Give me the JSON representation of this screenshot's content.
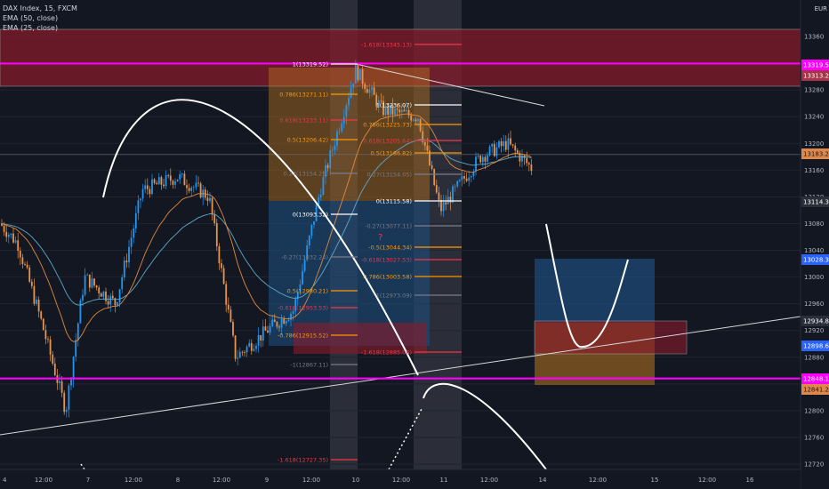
{
  "legend": {
    "symbol": "DAX Index, 15, FXCM",
    "ema1": "EMA (50, close)",
    "ema2": "EMA (25, close)"
  },
  "colors": {
    "background": "#131722",
    "up": "#2196f3",
    "down": "#e8944a",
    "ema50": "#5ea9c9",
    "ema25": "#e08a3c",
    "magenta": "#ff00ff",
    "red_zone": "#8b1a2b",
    "blue_zone": "#1e4d7b",
    "orange_zone": "#b8741f",
    "gray_band": "#5a5560",
    "white": "#ffffff"
  },
  "chart_data": {
    "type": "candlestick",
    "symbol": "DAX Index",
    "interval": "15",
    "y_axis": {
      "ticks": [
        13360,
        13320,
        13280,
        13240,
        13200,
        13160,
        13120,
        13080,
        13040,
        13000,
        12960,
        12920,
        12880,
        12840,
        12800,
        12760,
        12720
      ],
      "top_label": "EUR"
    },
    "x_axis": {
      "ticks": [
        "12:00",
        "7",
        "12:00",
        "8",
        "12:00",
        "9",
        "12:00",
        "10",
        "12:00",
        "11",
        "12:00",
        "14",
        "12:00",
        "15",
        "12:00",
        "16"
      ],
      "first_tick": "4"
    },
    "price_labels": [
      {
        "value": "13319.53",
        "color": "#ff00ff",
        "text_color": "#ffffff"
      },
      {
        "value": "13313.22",
        "color": "#a83248",
        "text_color": "#ffffff"
      },
      {
        "value": "13183.26",
        "color": "#e0884a",
        "text_color": "#131722"
      },
      {
        "value": "13114.39",
        "color": "#2a2e39",
        "text_color": "#ffffff"
      },
      {
        "value": "13028.31",
        "color": "#2962ff",
        "text_color": "#ffffff"
      },
      {
        "value": "12934.80",
        "color": "#2a2e39",
        "text_color": "#ffffff"
      },
      {
        "value": "12898.66",
        "color": "#2962ff",
        "text_color": "#ffffff"
      },
      {
        "value": "12848.13",
        "color": "#ff00ff",
        "text_color": "#ffffff"
      },
      {
        "value": "12841.29",
        "color": "#e0884a",
        "text_color": "#131722"
      }
    ],
    "horizontal_levels": [
      {
        "value": 13319.53,
        "color": "#ff00ff",
        "kind": "key level"
      },
      {
        "value": 12848.13,
        "color": "#ff00ff",
        "kind": "key level"
      },
      {
        "value": 13183.26,
        "color": "#e0884a",
        "kind": "current price"
      }
    ],
    "fib_left": [
      {
        "label": "1(13319.52)",
        "color": "#ffffff"
      },
      {
        "label": "0.786(13271.11)",
        "color": "#ff9800"
      },
      {
        "label": "0.618(13233.11)",
        "color": "#f23645"
      },
      {
        "label": "0.5(13206.42)",
        "color": "#ff9800"
      },
      {
        "label": "0.27(13154.25)",
        "color": "#787b86"
      },
      {
        "label": "0(13093.32)",
        "color": "#ffffff"
      },
      {
        "label": "-0.27(13032.24)",
        "color": "#787b86"
      },
      {
        "label": "0.5(12980.21)",
        "color": "#ff9800"
      },
      {
        "label": "-0.618(12953.53)",
        "color": "#f23645"
      },
      {
        "label": "-0.786(12915.52)",
        "color": "#ff9800"
      },
      {
        "label": "-1(12867.11)",
        "color": "#787b86"
      },
      {
        "label": "-1.618(12727.35)",
        "color": "#f23645"
      }
    ],
    "fib_right": [
      {
        "label": "-1.618(13345.13)",
        "color": "#f23645"
      },
      {
        "label": "1(13236.07)",
        "color": "#ffffff"
      },
      {
        "label": "0.786(13225.73)",
        "color": "#ff9800"
      },
      {
        "label": "0.618(13205.64)",
        "color": "#f23645"
      },
      {
        "label": "0.5(13186.82)",
        "color": "#ff9800"
      },
      {
        "label": "0.27(13154.05)",
        "color": "#787b86"
      },
      {
        "label": "0(13115.58)",
        "color": "#ffffff"
      },
      {
        "label": "-0.27(13077.11)",
        "color": "#787b86"
      },
      {
        "label": "-0.5(13044.34)",
        "color": "#ff9800"
      },
      {
        "label": "-0.618(13027.53)",
        "color": "#f23645"
      },
      {
        "label": "0.786(13003.58)",
        "color": "#ff9800"
      },
      {
        "label": "-1(12973.09)",
        "color": "#787b86"
      },
      {
        "label": "-1.618(12885.06)",
        "color": "#f23645"
      }
    ],
    "overlay_text": [
      {
        "text": "?",
        "color": "#f23645"
      }
    ]
  }
}
